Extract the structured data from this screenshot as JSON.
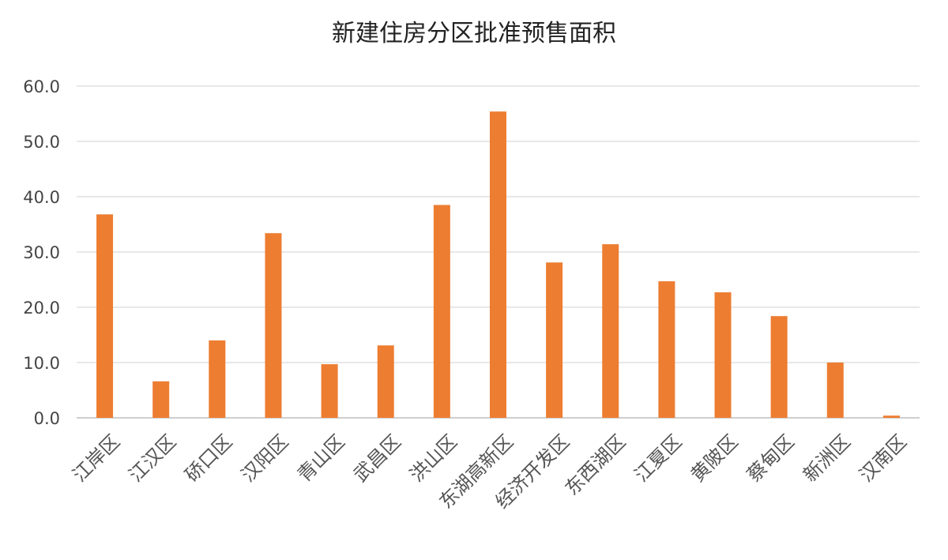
{
  "chart_data": {
    "type": "bar",
    "title": "新建住房分区批准预售面积",
    "xlabel": "",
    "ylabel": "",
    "categories": [
      "江岸区",
      "江汉区",
      "硚口区",
      "汉阳区",
      "青山区",
      "武昌区",
      "洪山区",
      "东湖高新区",
      "经济开发区",
      "东西湖区",
      "江夏区",
      "黄陂区",
      "蔡甸区",
      "新洲区",
      "汉南区"
    ],
    "values": [
      36.8,
      6.6,
      14.0,
      33.4,
      9.7,
      13.1,
      38.5,
      55.4,
      28.1,
      31.4,
      24.7,
      22.7,
      18.4,
      10.0,
      0.4
    ],
    "ylim": [
      0,
      60
    ],
    "yticks": [
      "0.0",
      "10.0",
      "20.0",
      "30.0",
      "40.0",
      "50.0",
      "60.0"
    ],
    "grid": true,
    "legend": "none",
    "colors": {
      "bar": "#ED7D31"
    }
  }
}
